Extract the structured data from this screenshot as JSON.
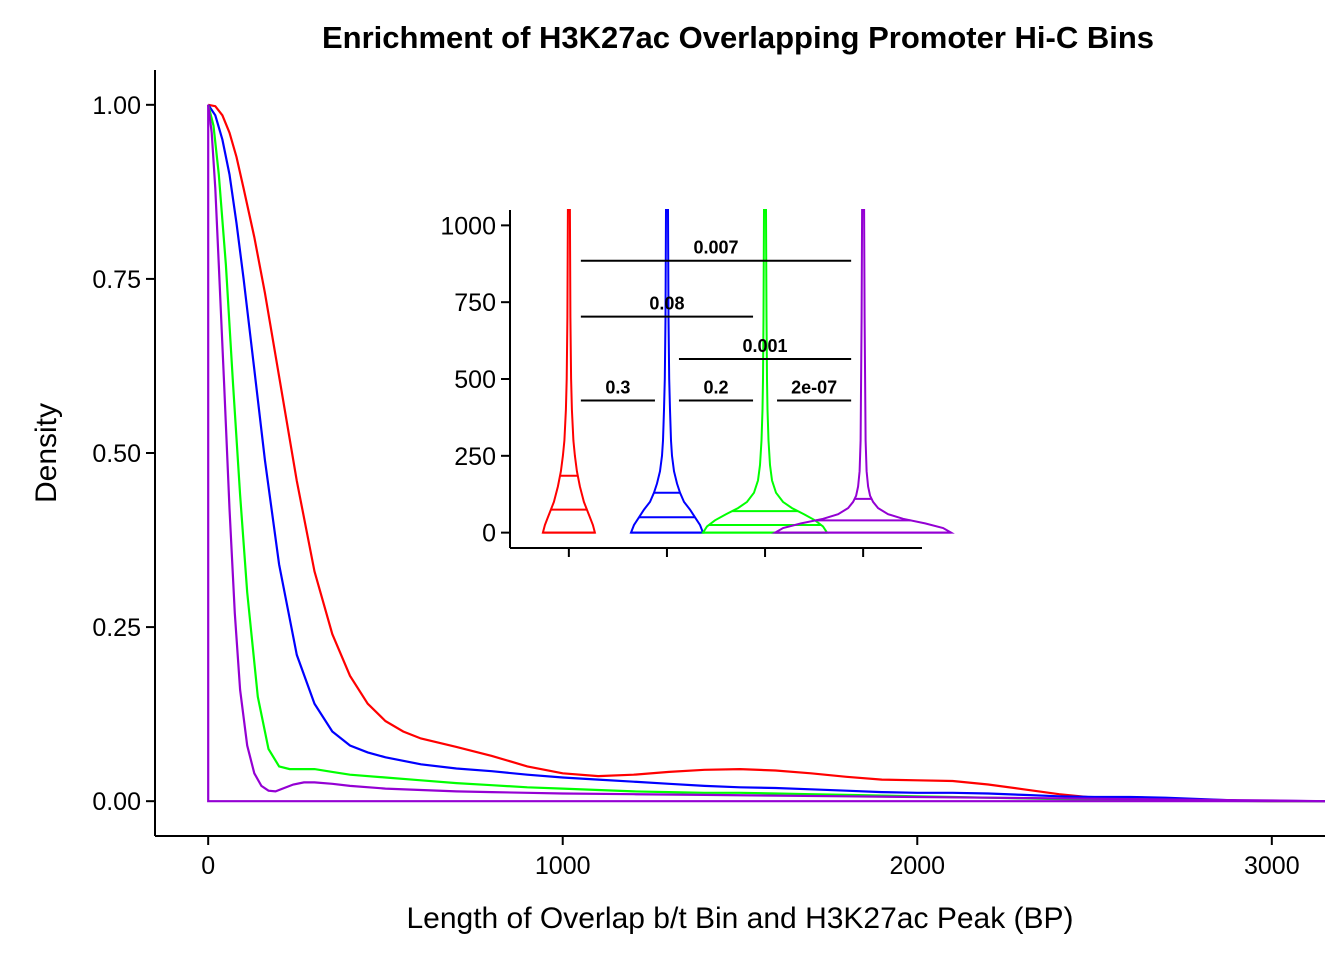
{
  "chart_data": [
    {
      "type": "line",
      "title": "Enrichment of H3K27ac Overlapping Promoter Hi-C Bins",
      "xlabel": "Length of Overlap b/t Bin and H3K27ac Peak (BP)",
      "ylabel": "Density",
      "xlim": [
        -150,
        3150
      ],
      "ylim": [
        -0.05,
        1.05
      ],
      "x_ticks": [
        0,
        1000,
        2000,
        3000
      ],
      "x_tick_labels": [
        "0",
        "1000",
        "2000",
        "3000"
      ],
      "y_ticks": [
        0,
        0.25,
        0.5,
        0.75,
        1.0
      ],
      "y_tick_labels": [
        "0.00",
        "0.25",
        "0.50",
        "0.75",
        "1.00"
      ],
      "grid": false,
      "series": [
        {
          "color": "#ff0000",
          "x": [
            0,
            20,
            40,
            60,
            80,
            100,
            130,
            160,
            200,
            250,
            300,
            350,
            400,
            450,
            500,
            550,
            600,
            700,
            800,
            900,
            1000,
            1100,
            1200,
            1300,
            1400,
            1500,
            1600,
            1700,
            1800,
            1900,
            2000,
            2100,
            2200,
            2300,
            2400,
            2500,
            2600,
            2700,
            2800,
            2900,
            3000,
            3150
          ],
          "y": [
            1.0,
            0.998,
            0.985,
            0.96,
            0.925,
            0.88,
            0.81,
            0.73,
            0.61,
            0.46,
            0.33,
            0.24,
            0.18,
            0.14,
            0.115,
            0.1,
            0.09,
            0.078,
            0.065,
            0.05,
            0.04,
            0.036,
            0.038,
            0.042,
            0.045,
            0.046,
            0.044,
            0.04,
            0.035,
            0.031,
            0.03,
            0.029,
            0.024,
            0.017,
            0.01,
            0.005,
            0.003,
            0.002,
            0.001,
            0.0005,
            0.0,
            0.0
          ]
        },
        {
          "color": "#0000ff",
          "x": [
            0,
            20,
            40,
            60,
            80,
            100,
            130,
            160,
            200,
            250,
            300,
            350,
            400,
            450,
            500,
            600,
            700,
            800,
            900,
            1000,
            1100,
            1200,
            1300,
            1400,
            1500,
            1600,
            1700,
            1800,
            1900,
            2000,
            2100,
            2200,
            2300,
            2400,
            2500,
            2600,
            2700,
            2800,
            2900,
            3000,
            3150
          ],
          "y": [
            1.0,
            0.985,
            0.95,
            0.9,
            0.83,
            0.75,
            0.62,
            0.49,
            0.34,
            0.21,
            0.14,
            0.1,
            0.08,
            0.07,
            0.063,
            0.053,
            0.047,
            0.043,
            0.038,
            0.034,
            0.031,
            0.028,
            0.025,
            0.022,
            0.02,
            0.019,
            0.017,
            0.015,
            0.013,
            0.012,
            0.012,
            0.011,
            0.009,
            0.007,
            0.006,
            0.006,
            0.005,
            0.003,
            0.001,
            0.0005,
            0.0
          ]
        },
        {
          "color": "#00ff00",
          "x": [
            0,
            15,
            30,
            50,
            70,
            90,
            110,
            140,
            170,
            200,
            230,
            260,
            300,
            350,
            400,
            500,
            600,
            700,
            800,
            900,
            1000,
            1100,
            1200,
            1300,
            1400,
            1500,
            1600,
            1700,
            1800,
            1900,
            2000,
            2100,
            2200,
            2300,
            2400,
            2500,
            2600,
            2700,
            2800,
            3000,
            3150
          ],
          "y": [
            1.0,
            0.97,
            0.9,
            0.77,
            0.6,
            0.44,
            0.3,
            0.15,
            0.075,
            0.05,
            0.046,
            0.046,
            0.046,
            0.042,
            0.038,
            0.034,
            0.03,
            0.026,
            0.023,
            0.02,
            0.018,
            0.016,
            0.014,
            0.013,
            0.012,
            0.012,
            0.011,
            0.01,
            0.009,
            0.008,
            0.007,
            0.006,
            0.005,
            0.004,
            0.003,
            0.002,
            0.0015,
            0.001,
            0.0005,
            0.0,
            0.0
          ]
        },
        {
          "color": "#9400d3",
          "x": [
            0,
            10,
            20,
            30,
            45,
            60,
            75,
            90,
            110,
            130,
            150,
            170,
            190,
            210,
            240,
            270,
            300,
            350,
            400,
            500,
            600,
            700,
            800,
            900,
            1000,
            1200,
            1400,
            1600,
            1800,
            2000,
            2200,
            2400,
            2600,
            2800,
            3000,
            3150
          ],
          "y": [
            1.0,
            0.96,
            0.88,
            0.77,
            0.6,
            0.42,
            0.27,
            0.16,
            0.08,
            0.04,
            0.022,
            0.015,
            0.014,
            0.018,
            0.024,
            0.027,
            0.027,
            0.025,
            0.022,
            0.018,
            0.016,
            0.014,
            0.013,
            0.012,
            0.011,
            0.01,
            0.009,
            0.008,
            0.007,
            0.006,
            0.005,
            0.004,
            0.003,
            0.002,
            0.001,
            0.0
          ]
        },
        {
          "color": "#9400d3",
          "x": [
            0,
            0,
            3150
          ],
          "y": [
            1.0,
            0.0,
            0.0
          ]
        }
      ]
    },
    {
      "type": "violin",
      "y_ticks": [
        0,
        250,
        500,
        750,
        1000
      ],
      "y_tick_labels": [
        "0",
        "250",
        "500",
        "750",
        "1000"
      ],
      "ylim": [
        -50,
        1050
      ],
      "grid": false,
      "violins": [
        {
          "color": "#ff0000",
          "quantiles": [
            0,
            75,
            185
          ],
          "profile_y": [
            0,
            25,
            50,
            75,
            100,
            150,
            200,
            250,
            300,
            400,
            500,
            700,
            1050
          ],
          "profile_halfwidth": [
            26,
            24,
            21,
            18,
            15,
            11,
            8,
            6,
            4.5,
            3,
            2.2,
            1.5,
            1
          ]
        },
        {
          "color": "#0000ff",
          "quantiles": [
            0,
            50,
            130
          ],
          "profile_y": [
            0,
            25,
            50,
            75,
            100,
            130,
            160,
            200,
            250,
            300,
            400,
            500,
            700,
            1050
          ],
          "profile_halfwidth": [
            36,
            33,
            28,
            23,
            17,
            13,
            10,
            7,
            5,
            4,
            3,
            2.2,
            1.5,
            1
          ]
        },
        {
          "color": "#00ff00",
          "quantiles": [
            0,
            25,
            70
          ],
          "profile_y": [
            0,
            20,
            40,
            60,
            80,
            100,
            130,
            170,
            220,
            300,
            400,
            500,
            700,
            1050
          ],
          "profile_halfwidth": [
            62,
            58,
            50,
            39,
            27,
            18,
            11,
            7,
            5,
            3.5,
            2.5,
            2,
            1.5,
            1
          ]
        },
        {
          "color": "#9400d3",
          "quantiles": [
            0,
            40,
            110
          ],
          "profile_y": [
            0,
            15,
            30,
            45,
            60,
            80,
            100,
            120,
            150,
            200,
            300,
            500,
            700,
            1050
          ],
          "profile_halfwidth": [
            88,
            80,
            62,
            40,
            25,
            15,
            10,
            7,
            5,
            3.5,
            2.5,
            2,
            1.5,
            1
          ]
        }
      ],
      "comparisons": [
        {
          "from": 1,
          "to": 2,
          "y": 430,
          "label": "0.3"
        },
        {
          "from": 2,
          "to": 3,
          "y": 430,
          "label": "0.2"
        },
        {
          "from": 3,
          "to": 4,
          "y": 430,
          "label": "2e-07"
        },
        {
          "from": 2,
          "to": 4,
          "y": 565,
          "label": "0.001"
        },
        {
          "from": 1,
          "to": 3,
          "y": 703,
          "label": "0.08"
        },
        {
          "from": 1,
          "to": 4,
          "y": 885,
          "label": "0.007"
        }
      ]
    }
  ]
}
